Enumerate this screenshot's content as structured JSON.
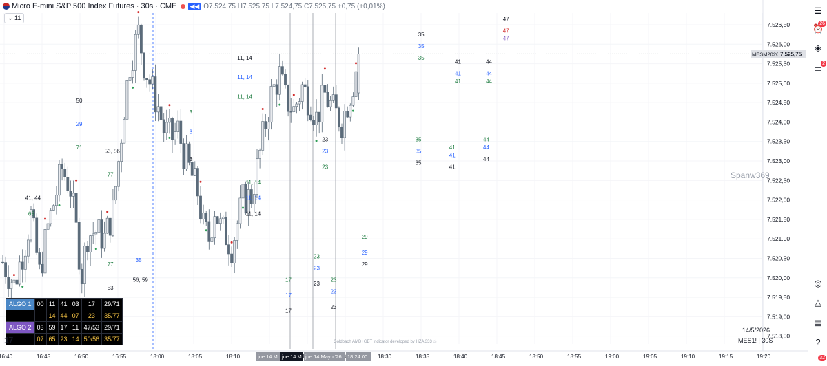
{
  "header": {
    "symbol_line": "Micro E-mini S&P 500 Index Futures · 30s · CME",
    "replay_tag": "◀◀",
    "ohlc": "O7.524,75 H7.525,75 L7.524,75 C7.525,75 +0,75 (+0,01%)",
    "interval_badge": "⌄ 11"
  },
  "price_tag": {
    "symbol": "MESM2026",
    "price": "7.525,75"
  },
  "watermark": "Spanw369",
  "footer": {
    "date": "14/5/2026",
    "symbol": "MES1! | 30S",
    "credit": "Goldbach AMD+GBT indicator developed by HZA 333 ♨"
  },
  "logo_text": "17",
  "sidebar": {
    "badge_alerts": "26",
    "badge_chat": "2",
    "badge_bottom": "32"
  },
  "algo_table": {
    "rows": [
      {
        "label": "ALGO 1",
        "cells": [
          "00",
          "11",
          "41",
          "03",
          "17",
          "29/71"
        ]
      },
      {
        "label": "",
        "cells": [
          "",
          "14",
          "44",
          "07",
          "23",
          "35/77"
        ]
      },
      {
        "label": "ALGO 2",
        "cells": [
          "03",
          "59",
          "17",
          "11",
          "47/53",
          "29/71"
        ]
      },
      {
        "label": "",
        "cells": [
          "07",
          "65",
          "23",
          "14",
          "50/56",
          "35/77"
        ]
      }
    ]
  },
  "colors": {
    "up": "#e8eaee",
    "down": "#5b6b7a",
    "green": "#1b7a3e",
    "blue": "#2962ff",
    "dark": "#131722",
    "red": "#d32f2f",
    "purple": "#7e57c2"
  },
  "chart_data": {
    "type": "candlestick",
    "y_label_side": "right",
    "ylim": [
      7518.3,
      7526.8
    ],
    "y_ticks": [
      7518.5,
      7519.0,
      7519.5,
      7520.0,
      7520.5,
      7521.0,
      7521.5,
      7522.0,
      7522.5,
      7523.0,
      7523.5,
      7524.0,
      7524.5,
      7525.0,
      7525.5,
      7526.0,
      7526.5
    ],
    "y_tick_labels": [
      "7.518,50",
      "7.519,00",
      "7.519,50",
      "7.520,00",
      "7.520,50",
      "7.521,00",
      "7.521,50",
      "7.522,00",
      "7.522,50",
      "7.523,00",
      "7.523,50",
      "7.524,00",
      "7.524,50",
      "7.525,00",
      "7.525,50",
      "7.526,00",
      "7.526,50"
    ],
    "x_ticks": [
      "16:40",
      "16:45",
      "16:50",
      "16:55",
      "18:00",
      "18:05",
      "18:10",
      "18:15",
      "18:20",
      "18:25",
      "18:30",
      "18:35",
      "18:40",
      "18:45",
      "18:50",
      "18:55",
      "19:00",
      "19:05",
      "19:10",
      "19:15",
      "19:20"
    ],
    "x_highlight_labels": [
      "jue 14 M",
      "jue 14 M",
      "jue 14 Mayo '26",
      "18:24:00"
    ],
    "last_price": 7525.75,
    "anchors": [
      {
        "t": 0,
        "p": 7520.4
      },
      {
        "t": 4,
        "p": 7519.8
      },
      {
        "t": 8,
        "p": 7520.9
      },
      {
        "t": 10,
        "p": 7521.6
      },
      {
        "t": 13,
        "p": 7520.1
      },
      {
        "t": 16,
        "p": 7521.3
      },
      {
        "t": 19,
        "p": 7522.2
      },
      {
        "t": 21,
        "p": 7522.8
      },
      {
        "t": 24,
        "p": 7522.3
      },
      {
        "t": 26,
        "p": 7521.2
      },
      {
        "t": 28,
        "p": 7520.1
      },
      {
        "t": 30,
        "p": 7521.1
      },
      {
        "t": 33,
        "p": 7521.2
      },
      {
        "t": 36,
        "p": 7521.0
      },
      {
        "t": 39,
        "p": 7521.7
      },
      {
        "t": 41,
        "p": 7523.0
      },
      {
        "t": 43,
        "p": 7524.4
      },
      {
        "t": 45,
        "p": 7525.5
      },
      {
        "t": 48,
        "p": 7526.3
      },
      {
        "t": 50,
        "p": 7525.5
      },
      {
        "t": 53,
        "p": 7524.8
      },
      {
        "t": 55,
        "p": 7524.4
      },
      {
        "t": 57,
        "p": 7523.8
      },
      {
        "t": 60,
        "p": 7523.6
      },
      {
        "t": 62,
        "p": 7523.8
      },
      {
        "t": 64,
        "p": 7523.2
      },
      {
        "t": 66,
        "p": 7522.8
      },
      {
        "t": 69,
        "p": 7522.2
      },
      {
        "t": 71,
        "p": 7521.3
      },
      {
        "t": 73,
        "p": 7521.0
      },
      {
        "t": 75,
        "p": 7521.8
      },
      {
        "t": 77,
        "p": 7521.3
      },
      {
        "t": 79,
        "p": 7521.1
      },
      {
        "t": 81,
        "p": 7520.8
      },
      {
        "t": 83,
        "p": 7521.4
      },
      {
        "t": 85,
        "p": 7522.0
      },
      {
        "t": 88,
        "p": 7522.1
      },
      {
        "t": 90,
        "p": 7522.8
      },
      {
        "t": 92,
        "p": 7523.6
      },
      {
        "t": 95,
        "p": 7524.7
      },
      {
        "t": 98,
        "p": 7525.2
      },
      {
        "t": 100,
        "p": 7524.6
      },
      {
        "t": 103,
        "p": 7524.3
      },
      {
        "t": 106,
        "p": 7524.9
      },
      {
        "t": 109,
        "p": 7524.5
      },
      {
        "t": 111,
        "p": 7524.1
      },
      {
        "t": 114,
        "p": 7524.7
      },
      {
        "t": 117,
        "p": 7524.3
      },
      {
        "t": 120,
        "p": 7524.0
      },
      {
        "t": 122,
        "p": 7524.5
      },
      {
        "t": 124,
        "p": 7525.0
      },
      {
        "t": 126,
        "p": 7525.75
      }
    ],
    "indicator_labels": [
      {
        "id": "lbl-41-44",
        "t": 8,
        "p": 7522.0,
        "text": "41, 44",
        "c": "dark"
      },
      {
        "id": "lbl-65",
        "t": 9,
        "p": 7521.6,
        "text": "65",
        "c": "green"
      },
      {
        "id": "lbl-50",
        "t": 26,
        "p": 7524.5,
        "text": "50",
        "c": "dark"
      },
      {
        "id": "lbl-29",
        "t": 26,
        "p": 7523.9,
        "text": "29",
        "c": "blue"
      },
      {
        "id": "lbl-71",
        "t": 26,
        "p": 7523.3,
        "text": "71",
        "c": "green"
      },
      {
        "id": "lbl-53-56",
        "t": 36,
        "p": 7523.2,
        "text": "53, 56",
        "c": "dark"
      },
      {
        "id": "lbl-77a",
        "t": 37,
        "p": 7522.6,
        "text": "77",
        "c": "green"
      },
      {
        "id": "lbl-77b",
        "t": 37,
        "p": 7520.3,
        "text": "77",
        "c": "green"
      },
      {
        "id": "lbl-53",
        "t": 37,
        "p": 7519.7,
        "text": "53",
        "c": "dark"
      },
      {
        "id": "lbl-35a",
        "t": 47,
        "p": 7520.4,
        "text": "35",
        "c": "blue"
      },
      {
        "id": "lbl-56-59",
        "t": 46,
        "p": 7519.9,
        "text": "56, 59",
        "c": "dark"
      },
      {
        "id": "lbl-3a",
        "t": 66,
        "p": 7524.2,
        "text": "3",
        "c": "green"
      },
      {
        "id": "lbl-3b",
        "t": 66,
        "p": 7523.7,
        "text": "3",
        "c": "blue"
      },
      {
        "id": "lbl-3c",
        "t": 66,
        "p": 7523.0,
        "text": "3",
        "c": "dark"
      },
      {
        "id": "lbl-11-14a",
        "t": 83,
        "p": 7525.6,
        "text": "11, 14",
        "c": "dark"
      },
      {
        "id": "lbl-11-14b",
        "t": 83,
        "p": 7525.1,
        "text": "11, 14",
        "c": "blue"
      },
      {
        "id": "lbl-11-14c",
        "t": 83,
        "p": 7524.6,
        "text": "11, 14",
        "c": "green"
      },
      {
        "id": "lbl-11-14d",
        "t": 86,
        "p": 7522.4,
        "text": "11, 14",
        "c": "green"
      },
      {
        "id": "lbl-11-14e",
        "t": 86,
        "p": 7522.0,
        "text": "11, 14",
        "c": "blue"
      },
      {
        "id": "lbl-11-14f",
        "t": 86,
        "p": 7521.6,
        "text": "11, 14",
        "c": "dark"
      },
      {
        "id": "lbl-17a",
        "t": 100,
        "p": 7519.9,
        "text": "17",
        "c": "green"
      },
      {
        "id": "lbl-17b",
        "t": 100,
        "p": 7519.5,
        "text": "17",
        "c": "blue"
      },
      {
        "id": "lbl-17c",
        "t": 100,
        "p": 7519.1,
        "text": "17",
        "c": "dark"
      },
      {
        "id": "lbl-23a",
        "t": 113,
        "p": 7523.5,
        "text": "23",
        "c": "dark"
      },
      {
        "id": "lbl-23b",
        "t": 113,
        "p": 7523.2,
        "text": "23",
        "c": "blue"
      },
      {
        "id": "lbl-23c",
        "t": 113,
        "p": 7522.8,
        "text": "23",
        "c": "green"
      },
      {
        "id": "lbl-23d",
        "t": 110,
        "p": 7520.5,
        "text": "23",
        "c": "green"
      },
      {
        "id": "lbl-23e",
        "t": 110,
        "p": 7520.2,
        "text": "23",
        "c": "blue"
      },
      {
        "id": "lbl-23f",
        "t": 110,
        "p": 7519.8,
        "text": "23",
        "c": "dark"
      },
      {
        "id": "lbl-23g",
        "t": 116,
        "p": 7519.9,
        "text": "23",
        "c": "green"
      },
      {
        "id": "lbl-23h",
        "t": 116,
        "p": 7519.6,
        "text": "23",
        "c": "blue"
      },
      {
        "id": "lbl-23i",
        "t": 116,
        "p": 7519.2,
        "text": "23",
        "c": "dark"
      },
      {
        "id": "lbl-29a",
        "t": 127,
        "p": 7521.0,
        "text": "29",
        "c": "green"
      },
      {
        "id": "lbl-29b",
        "t": 127,
        "p": 7520.6,
        "text": "29",
        "c": "blue"
      },
      {
        "id": "lbl-29c",
        "t": 127,
        "p": 7520.3,
        "text": "29",
        "c": "dark"
      },
      {
        "id": "lbl-35b",
        "t": 147,
        "p": 7526.2,
        "text": "35",
        "c": "dark"
      },
      {
        "id": "lbl-35c",
        "t": 147,
        "p": 7525.9,
        "text": "35",
        "c": "blue"
      },
      {
        "id": "lbl-35d",
        "t": 147,
        "p": 7525.6,
        "text": "35",
        "c": "green"
      },
      {
        "id": "lbl-35e",
        "t": 146,
        "p": 7523.5,
        "text": "35",
        "c": "green"
      },
      {
        "id": "lbl-35f",
        "t": 146,
        "p": 7523.2,
        "text": "35",
        "c": "blue"
      },
      {
        "id": "lbl-35g",
        "t": 146,
        "p": 7522.9,
        "text": "35",
        "c": "dark"
      },
      {
        "id": "lbl-41a",
        "t": 160,
        "p": 7525.5,
        "text": "41",
        "c": "dark"
      },
      {
        "id": "lbl-41b",
        "t": 160,
        "p": 7525.2,
        "text": "41",
        "c": "blue"
      },
      {
        "id": "lbl-41c",
        "t": 160,
        "p": 7525.0,
        "text": "41",
        "c": "green"
      },
      {
        "id": "lbl-41d",
        "t": 158,
        "p": 7523.3,
        "text": "41",
        "c": "green"
      },
      {
        "id": "lbl-41e",
        "t": 158,
        "p": 7523.1,
        "text": "41",
        "c": "blue"
      },
      {
        "id": "lbl-41f",
        "t": 158,
        "p": 7522.8,
        "text": "41",
        "c": "dark"
      },
      {
        "id": "lbl-44a",
        "t": 171,
        "p": 7525.5,
        "text": "44",
        "c": "dark"
      },
      {
        "id": "lbl-44b",
        "t": 171,
        "p": 7525.2,
        "text": "44",
        "c": "blue"
      },
      {
        "id": "lbl-44c",
        "t": 171,
        "p": 7525.0,
        "text": "44",
        "c": "green"
      },
      {
        "id": "lbl-44d",
        "t": 170,
        "p": 7523.5,
        "text": "44",
        "c": "green"
      },
      {
        "id": "lbl-44e",
        "t": 170,
        "p": 7523.3,
        "text": "44",
        "c": "blue"
      },
      {
        "id": "lbl-44f",
        "t": 170,
        "p": 7523.0,
        "text": "44",
        "c": "dark"
      },
      {
        "id": "lbl-47a",
        "t": 177,
        "p": 7526.6,
        "text": "47",
        "c": "dark"
      },
      {
        "id": "lbl-47b",
        "t": 177,
        "p": 7526.3,
        "text": "47",
        "c": "red"
      },
      {
        "id": "lbl-47c",
        "t": 177,
        "p": 7526.1,
        "text": "47",
        "c": "purple"
      }
    ]
  }
}
